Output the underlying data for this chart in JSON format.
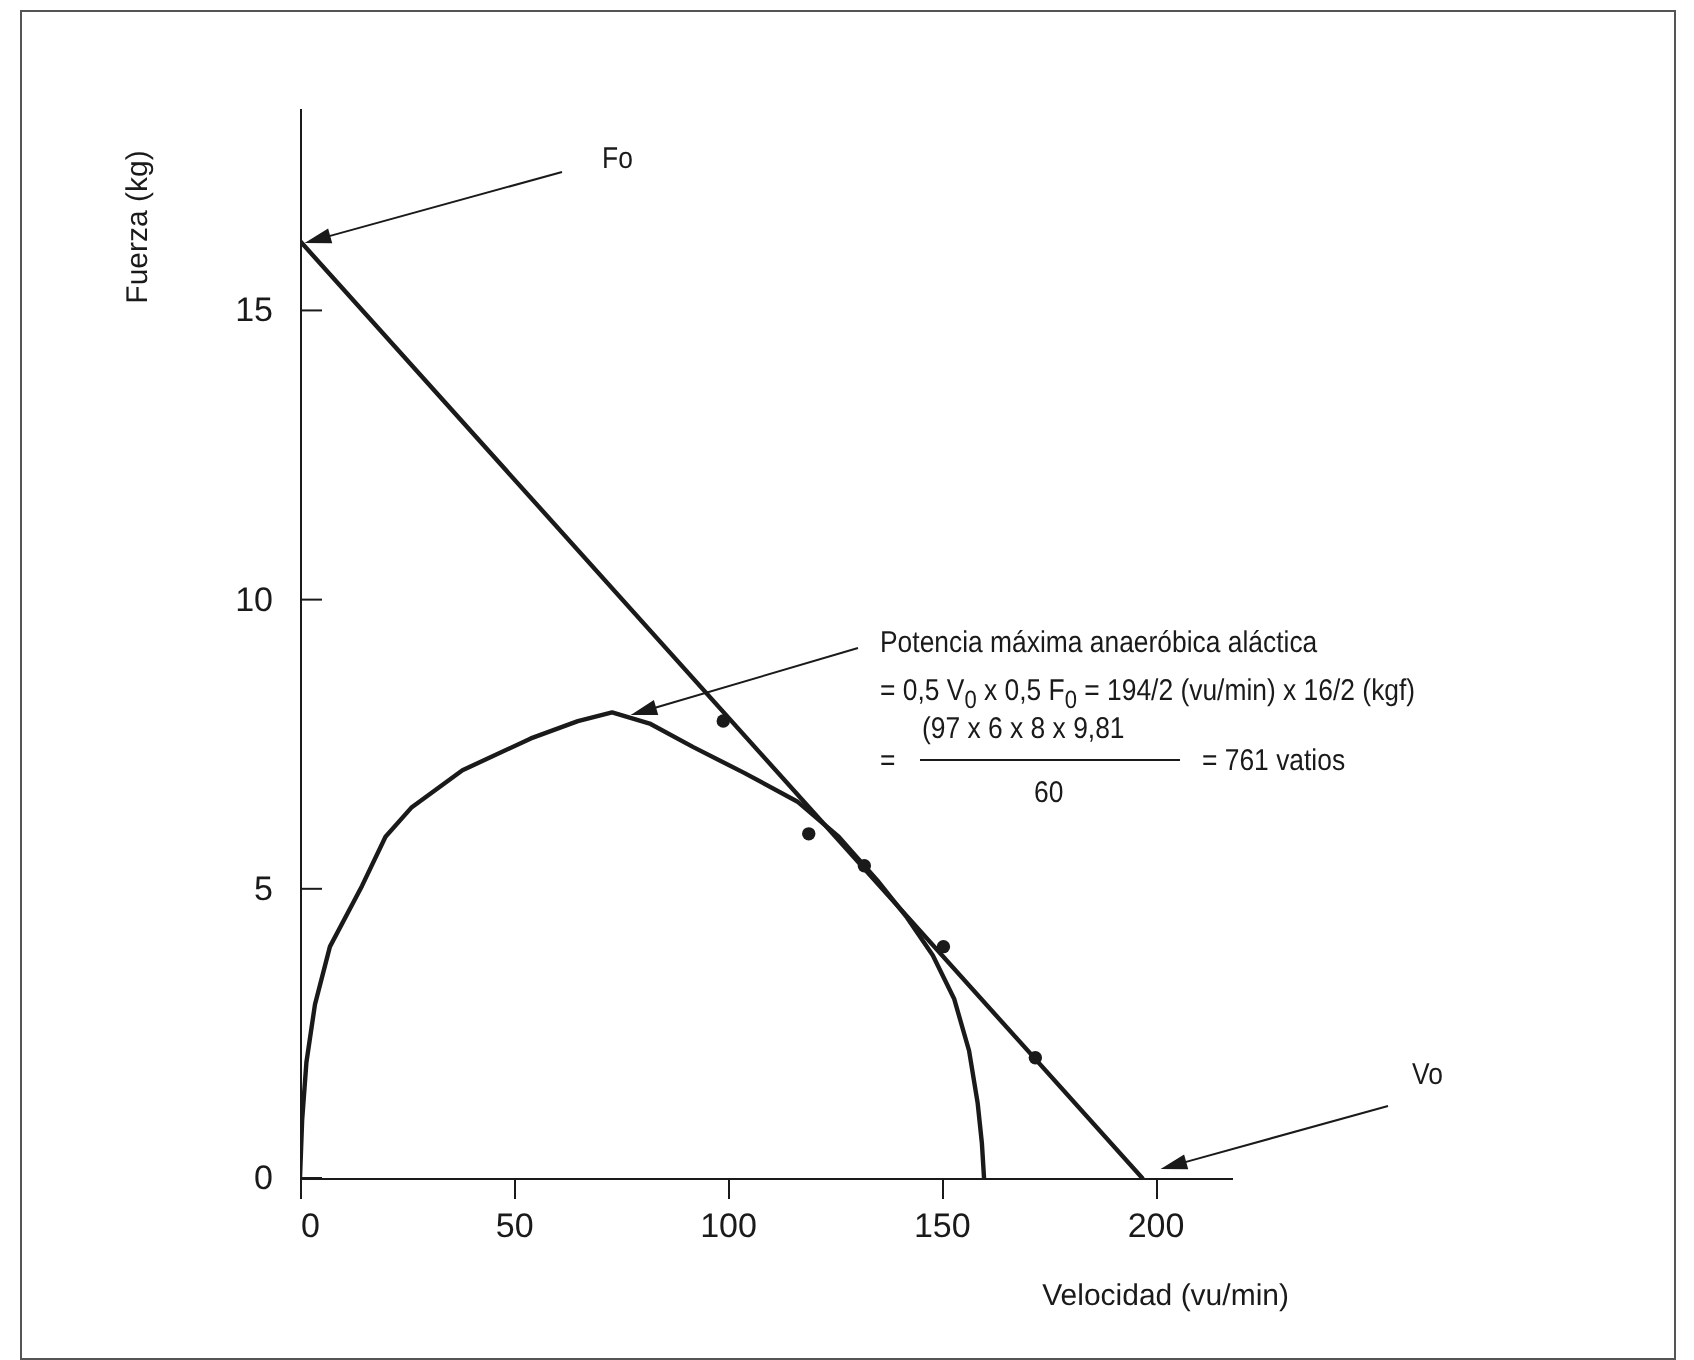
{
  "chart_data": {
    "type": "line",
    "xlabel": "Velocidad (vu/min)",
    "ylabel": "Fuerza (kg)",
    "xlim": [
      0,
      218
    ],
    "xticks": [
      0,
      50,
      100,
      150,
      200
    ],
    "ylim": [
      0,
      18.5
    ],
    "yticks": [
      0,
      5,
      10,
      15
    ],
    "grid": false,
    "series": [
      {
        "color": "#1a1a1a",
        "x": [
          0,
          197
        ],
        "values": [
          16.2,
          0
        ]
      },
      {
        "color": "#1a1a1a",
        "x": [
          0,
          0.5,
          1.5,
          3.5,
          7,
          14.5,
          20,
          26,
          38,
          54,
          65,
          73,
          82,
          92,
          104,
          116.5,
          126,
          135,
          142,
          148,
          153,
          156.5,
          158.5,
          159.5,
          160
        ],
        "values": [
          0,
          1,
          2,
          3,
          4,
          5.05,
          5.9,
          6.4,
          7.05,
          7.6,
          7.9,
          8.05,
          7.85,
          7.45,
          7,
          6.5,
          5.9,
          5.15,
          4.5,
          3.85,
          3.1,
          2.2,
          1.3,
          0.6,
          0
        ]
      },
      {
        "type": "scatter",
        "color": "#1a1a1a",
        "marker": "circle",
        "x": [
          99,
          119,
          132,
          150.5,
          172
        ],
        "values": [
          7.9,
          5.95,
          5.4,
          4.0,
          2.08
        ]
      }
    ],
    "annotations": [
      "Fo",
      "Vo",
      "Potencia máxima anaeróbica aláctica",
      "= 0,5 V$_{0}$ x 0,5 F$_{0}$ = 194/2 (vu/min) x 16/2 (kgf)",
      "=",
      "(97 x 6 x 8 x 9,81",
      "60",
      "= 761 vatios"
    ]
  }
}
